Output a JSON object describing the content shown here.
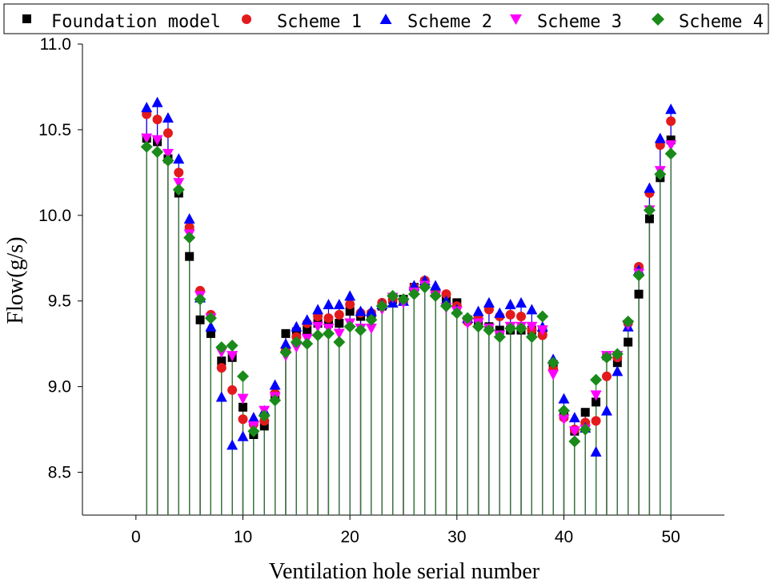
{
  "chart_data": {
    "type": "scatter",
    "xlabel": "Ventilation hole serial number",
    "ylabel": "Flow(g/s)",
    "xlim": [
      -5,
      55
    ],
    "ylim": [
      8.25,
      11.0
    ],
    "xticks": [
      0,
      10,
      20,
      30,
      40,
      50
    ],
    "xtick_labels": [
      "0",
      "10",
      "20",
      "30",
      "40",
      "50"
    ],
    "yticks": [
      8.5,
      9.0,
      9.5,
      10.0,
      10.5,
      11.0
    ],
    "ytick_labels": [
      "8.5",
      "9.0",
      "9.5",
      "10.0",
      "10.5",
      "11.0"
    ],
    "grid": false,
    "legend_position": "top",
    "x": [
      1,
      2,
      3,
      4,
      5,
      6,
      7,
      8,
      9,
      10,
      11,
      12,
      13,
      14,
      15,
      16,
      17,
      18,
      19,
      20,
      21,
      22,
      23,
      24,
      25,
      26,
      27,
      28,
      29,
      30,
      31,
      32,
      33,
      34,
      35,
      36,
      37,
      38,
      39,
      40,
      41,
      42,
      43,
      44,
      45,
      46,
      47,
      48,
      49,
      50
    ],
    "series": [
      {
        "name": "Foundation model",
        "marker": "square",
        "color": "#000000",
        "stem_color": "#8b0000",
        "values": [
          10.45,
          10.43,
          10.33,
          10.13,
          9.76,
          9.39,
          9.31,
          9.15,
          9.17,
          8.88,
          8.72,
          8.77,
          8.95,
          9.31,
          9.32,
          9.33,
          9.37,
          9.37,
          9.37,
          9.44,
          9.41,
          9.42,
          9.47,
          9.51,
          9.51,
          9.58,
          9.61,
          9.55,
          9.51,
          9.49,
          9.39,
          9.37,
          9.35,
          9.33,
          9.33,
          9.33,
          9.33,
          9.33,
          9.13,
          8.83,
          8.74,
          8.85,
          8.91,
          9.18,
          9.14,
          9.26,
          9.54,
          9.98,
          10.22,
          10.44
        ]
      },
      {
        "name": "Scheme 1",
        "marker": "circle",
        "color": "#e31a1c",
        "stem_color": "#e31a1c",
        "values": [
          10.59,
          10.56,
          10.48,
          10.25,
          9.93,
          9.56,
          9.42,
          9.11,
          8.98,
          8.81,
          8.78,
          8.8,
          8.96,
          9.21,
          9.29,
          9.37,
          9.41,
          9.4,
          9.42,
          9.48,
          9.43,
          9.43,
          9.49,
          9.51,
          9.5,
          9.58,
          9.62,
          9.55,
          9.54,
          9.47,
          9.38,
          9.4,
          9.45,
          9.41,
          9.42,
          9.41,
          9.33,
          9.3,
          9.1,
          8.82,
          8.75,
          8.79,
          8.8,
          9.06,
          9.17,
          9.37,
          9.7,
          10.13,
          10.41,
          10.55
        ]
      },
      {
        "name": "Scheme 2",
        "marker": "triangle-up",
        "color": "#0000ff",
        "stem_color": "#0000ff",
        "values": [
          10.63,
          10.66,
          10.57,
          10.33,
          9.98,
          9.52,
          9.35,
          8.94,
          8.66,
          8.71,
          8.82,
          8.86,
          9.01,
          9.25,
          9.35,
          9.39,
          9.45,
          9.48,
          9.48,
          9.53,
          9.44,
          9.44,
          9.48,
          9.49,
          9.5,
          9.59,
          9.62,
          9.59,
          9.5,
          9.45,
          9.4,
          9.44,
          9.49,
          9.43,
          9.48,
          9.49,
          9.45,
          9.35,
          9.16,
          8.93,
          8.82,
          8.76,
          8.62,
          8.86,
          9.09,
          9.35,
          9.68,
          10.16,
          10.45,
          10.62
        ]
      },
      {
        "name": "Scheme 3",
        "marker": "triangle-down",
        "color": "#ff00ff",
        "stem_color": "#ff00ff",
        "values": [
          10.45,
          10.44,
          10.36,
          10.19,
          9.89,
          9.53,
          9.4,
          9.2,
          9.18,
          8.93,
          8.77,
          8.86,
          8.94,
          9.18,
          9.23,
          9.28,
          9.35,
          9.34,
          9.31,
          9.37,
          9.34,
          9.34,
          9.45,
          9.52,
          9.49,
          9.55,
          9.59,
          9.53,
          9.46,
          9.44,
          9.37,
          9.37,
          9.34,
          9.3,
          9.35,
          9.35,
          9.35,
          9.33,
          9.07,
          8.81,
          8.74,
          8.75,
          8.95,
          9.18,
          9.18,
          9.36,
          9.66,
          10.03,
          10.26,
          10.41
        ]
      },
      {
        "name": "Scheme 4",
        "marker": "diamond",
        "color": "#1a8a1a",
        "stem_color": "#1a8a1a",
        "values": [
          10.4,
          10.37,
          10.32,
          10.15,
          9.87,
          9.51,
          9.4,
          9.23,
          9.24,
          9.06,
          8.74,
          8.83,
          8.92,
          9.2,
          9.26,
          9.25,
          9.3,
          9.31,
          9.26,
          9.35,
          9.33,
          9.39,
          9.47,
          9.53,
          9.51,
          9.54,
          9.58,
          9.53,
          9.47,
          9.43,
          9.4,
          9.35,
          9.33,
          9.29,
          9.34,
          9.34,
          9.29,
          9.41,
          9.14,
          8.86,
          8.68,
          8.75,
          9.04,
          9.17,
          9.19,
          9.38,
          9.65,
          10.03,
          10.24,
          10.36
        ]
      }
    ]
  }
}
